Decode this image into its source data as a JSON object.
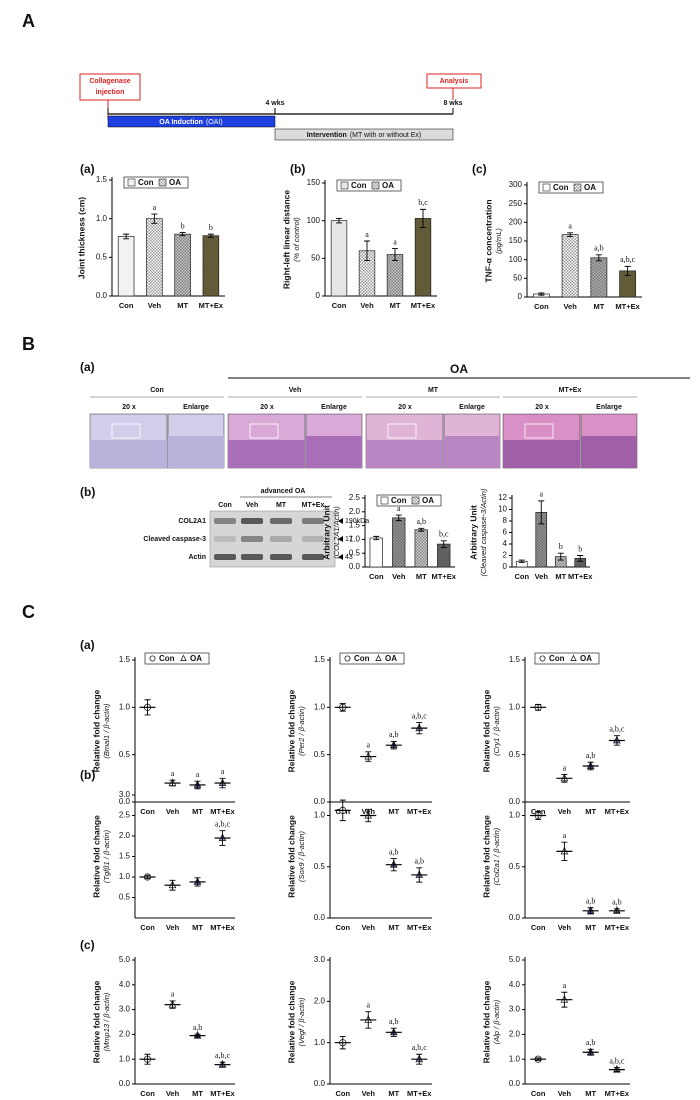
{
  "panel_labels": {
    "A": "A",
    "B": "B",
    "C": "C",
    "A_sub": [
      "(a)",
      "(b)",
      "(c)"
    ],
    "B_sub": [
      "(a)",
      "(b)"
    ],
    "C_sub": [
      "(a)",
      "(b)",
      "(c)"
    ]
  },
  "timeline": {
    "start_label": [
      "Collagenase",
      "injection"
    ],
    "end_label": "Analysis",
    "mid_tick": "4 wks",
    "end_tick": "8 wks",
    "phase1": "OA Induction",
    "phase1_abbr": "(OAI)",
    "phase2": "Intervention",
    "phase2_note": "(MT with or without Ex)"
  },
  "histology": {
    "group": "OA",
    "columns": [
      {
        "name": "Con",
        "sub": [
          "20 x",
          "Enlarge"
        ]
      },
      {
        "name": "Veh",
        "sub": [
          "20 x",
          "Enlarge"
        ]
      },
      {
        "name": "MT",
        "sub": [
          "20 x",
          "Enlarge"
        ]
      },
      {
        "name": "MT+Ex",
        "sub": [
          "20 x",
          "Enlarge"
        ]
      }
    ]
  },
  "western": {
    "group": "advanced OA",
    "lanes": [
      "Con",
      "Veh",
      "MT",
      "MT+Ex"
    ],
    "rows": [
      {
        "name": "COL2A1",
        "size": "190kDa"
      },
      {
        "name": "Cleaved caspase-3",
        "size": "17"
      },
      {
        "name": "Actin",
        "size": "43"
      }
    ]
  },
  "chart_data": [
    {
      "type": "bar",
      "ylabel": "Joint thickness (cm)",
      "categories": [
        "Con",
        "Veh",
        "MT",
        "MT+Ex"
      ],
      "values": [
        0.77,
        1.0,
        0.8,
        0.78
      ],
      "errors": [
        0.03,
        0.06,
        0.02,
        0.02
      ],
      "annotations": [
        null,
        "a",
        "b",
        "b"
      ],
      "colors": [
        "#f2f2f2",
        "#ffffff",
        "#c8c8c8",
        "#6e6433"
      ],
      "hatched": [
        false,
        true,
        true,
        true
      ],
      "legend": [
        "Con",
        "OA"
      ],
      "ylim": [
        0,
        1.5
      ],
      "yticks": [
        {
          "value": 0,
          "label": "0.0"
        },
        0.5,
        {
          "value": 1,
          "label": "1.0"
        },
        1.5
      ]
    },
    {
      "type": "bar",
      "ylabel": "Right-left linear distance",
      "ylabel_sub": "(% of control)",
      "categories": [
        "Con",
        "Veh",
        "MT",
        "MT+Ex"
      ],
      "values": [
        100,
        60,
        55,
        103
      ],
      "errors": [
        3,
        13,
        8,
        12
      ],
      "annotations": [
        null,
        "a",
        "a",
        "b,c"
      ],
      "colors": [
        "#e6e6e6",
        "#ffffff",
        "#c8c8c8",
        "#6e6433"
      ],
      "hatched": [
        false,
        true,
        true,
        true
      ],
      "legend": [
        "Con",
        "OA"
      ],
      "ylim": [
        0,
        150
      ],
      "yticks": [
        0,
        50,
        100,
        150
      ]
    },
    {
      "type": "bar",
      "ylabel": "TNF-α concentration",
      "ylabel_sub": "(pg/mL)",
      "categories": [
        "Con",
        "Veh",
        "MT",
        "MT+Ex"
      ],
      "values": [
        8,
        167,
        105,
        70
      ],
      "errors": [
        3,
        5,
        8,
        12
      ],
      "annotations": [
        null,
        "a",
        "a,b",
        "a,b,c"
      ],
      "colors": [
        "#ffffff",
        "#ffffff",
        "#b4b4b4",
        "#6e6433"
      ],
      "hatched": [
        false,
        true,
        true,
        true
      ],
      "legend": [
        "Con",
        "OA"
      ],
      "ylim": [
        0,
        300
      ],
      "yticks": [
        0,
        50,
        100,
        150,
        200,
        250,
        300
      ]
    },
    {
      "type": "bar",
      "ylabel": "Arbitrary Unit",
      "ylabel_sub": "(COL2A1/Actin)",
      "categories": [
        "Con",
        "Veh",
        "MT",
        "MT+Ex"
      ],
      "values": [
        1.05,
        1.78,
        1.35,
        0.83
      ],
      "errors": [
        0.06,
        0.1,
        0.05,
        0.12
      ],
      "annotations": [
        null,
        "a",
        "a,b",
        "b,c"
      ],
      "colors": [
        "#ffffff",
        "#9a9a9a",
        "#d0d0d0",
        "#606060"
      ],
      "hatched": [
        false,
        true,
        true,
        false
      ],
      "legend": [
        "Con",
        "OA"
      ],
      "ylim": [
        0,
        2.5
      ],
      "yticks": [
        {
          "value": 0,
          "label": "0.0"
        },
        0.5,
        {
          "value": 1,
          "label": "1.0"
        },
        1.5,
        {
          "value": 2,
          "label": "2.0"
        },
        2.5
      ]
    },
    {
      "type": "bar",
      "ylabel": "Arbitrary Unit",
      "ylabel_sub": "(Cleaved caspase-3/Actin)",
      "categories": [
        "Con",
        "Veh",
        "MT",
        "MT+Ex"
      ],
      "values": [
        1,
        9.5,
        1.8,
        1.5
      ],
      "errors": [
        0.2,
        2,
        0.6,
        0.5
      ],
      "annotations": [
        null,
        "a",
        "b",
        "b"
      ],
      "colors": [
        "#ffffff",
        "#9a9a9a",
        "#d0d0d0",
        "#606060"
      ],
      "hatched": [
        false,
        true,
        true,
        false
      ],
      "ylim": [
        0,
        12
      ],
      "yticks": [
        0,
        2,
        4,
        6,
        8,
        10,
        12
      ]
    },
    {
      "type": "dot",
      "ylabel": "Relative fold change",
      "ylabel_sub": "(Bmal1 / β-actin)",
      "categories": [
        "Con",
        "Veh",
        "MT",
        "MT+Ex"
      ],
      "values": [
        1.0,
        0.2,
        0.18,
        0.2
      ],
      "errors": [
        0.08,
        0.03,
        0.04,
        0.05
      ],
      "annotations": [
        null,
        "a",
        "a",
        "a"
      ],
      "markers": [
        "circle",
        "triangle",
        "triangle",
        "triangle"
      ],
      "colors": [
        "#ffffff",
        "#ffffff",
        "#4b4f9e",
        "#8a8dc8"
      ],
      "legend": [
        "Con",
        "OA"
      ],
      "ylim": [
        0,
        1.5
      ],
      "yticks": [
        {
          "value": 0,
          "label": "0.0"
        },
        0.5,
        {
          "value": 1,
          "label": "1.0"
        },
        1.5
      ]
    },
    {
      "type": "dot",
      "ylabel": "Relative fold change",
      "ylabel_sub": "(Per2 / β-actin)",
      "categories": [
        "Con",
        "Veh",
        "MT",
        "MT+Ex"
      ],
      "values": [
        1.0,
        0.48,
        0.6,
        0.78
      ],
      "errors": [
        0.04,
        0.05,
        0.04,
        0.06
      ],
      "annotations": [
        null,
        "a",
        "a,b",
        "a,b,c"
      ],
      "markers": [
        "circle",
        "triangle",
        "triangle",
        "triangle"
      ],
      "colors": [
        "#ffffff",
        "#ffffff",
        "#4b4f9e",
        "#8a8dc8"
      ],
      "legend": [
        "Con",
        "OA"
      ],
      "ylim": [
        0,
        1.5
      ],
      "yticks": [
        {
          "value": 0,
          "label": "0.0"
        },
        0.5,
        {
          "value": 1,
          "label": "1.0"
        },
        1.5
      ]
    },
    {
      "type": "dot",
      "ylabel": "Relative fold change",
      "ylabel_sub": "(Cry1 / β-actin)",
      "categories": [
        "Con",
        "Veh",
        "MT",
        "MT+Ex"
      ],
      "values": [
        1.0,
        0.25,
        0.38,
        0.65
      ],
      "errors": [
        0.03,
        0.04,
        0.04,
        0.05
      ],
      "annotations": [
        null,
        "a",
        "a,b",
        "a,b,c"
      ],
      "markers": [
        "circle",
        "triangle",
        "triangle",
        "triangle"
      ],
      "colors": [
        "#ffffff",
        "#ffffff",
        "#4b4f9e",
        "#8a8dc8"
      ],
      "legend": [
        "Con",
        "OA"
      ],
      "ylim": [
        0,
        1.5
      ],
      "yticks": [
        {
          "value": 0,
          "label": "0.0"
        },
        0.5,
        {
          "value": 1,
          "label": "1.0"
        },
        1.5
      ]
    },
    {
      "type": "dot",
      "ylabel": "Relative fold change",
      "ylabel_sub": "(Tgfβ1 / β-actin)",
      "categories": [
        "Con",
        "Veh",
        "MT",
        "MT+Ex"
      ],
      "values": [
        1.0,
        0.8,
        0.88,
        1.95
      ],
      "errors": [
        0.04,
        0.12,
        0.1,
        0.18
      ],
      "annotations": [
        null,
        null,
        null,
        "a,b,c"
      ],
      "markers": [
        "circle",
        "triangle",
        "triangle",
        "triangle"
      ],
      "colors": [
        "#ffffff",
        "#ffffff",
        "#4b4f9e",
        "#8a8dc8"
      ],
      "ylim": [
        0,
        3.0
      ],
      "yticks": [
        0.5,
        {
          "value": 1,
          "label": "1.0"
        },
        1.5,
        {
          "value": 2,
          "label": "2.0"
        },
        2.5,
        {
          "value": 3,
          "label": "3.0"
        }
      ]
    },
    {
      "type": "dot",
      "ylabel": "Relative fold change",
      "ylabel_sub": "(Sox9 / β-actin)",
      "categories": [
        "Con",
        "Veh",
        "MT",
        "MT+Ex"
      ],
      "values": [
        1.05,
        1.0,
        0.52,
        0.42
      ],
      "errors": [
        0.1,
        0.06,
        0.06,
        0.07
      ],
      "annotations": [
        null,
        null,
        "a,b",
        "a,b"
      ],
      "markers": [
        "circle",
        "triangle",
        "triangle",
        "triangle"
      ],
      "colors": [
        "#ffffff",
        "#ffffff",
        "#4b4f9e",
        "#8a8dc8"
      ],
      "ylim": [
        0,
        1.2
      ],
      "yticks": [
        {
          "value": 0,
          "label": "0.0"
        },
        0.5,
        {
          "value": 1,
          "label": "1.0"
        }
      ]
    },
    {
      "type": "dot",
      "ylabel": "Relative fold change",
      "ylabel_sub": "(Col2a1 / β-actin)",
      "categories": [
        "Con",
        "Veh",
        "MT",
        "MT+Ex"
      ],
      "values": [
        1.0,
        0.65,
        0.07,
        0.07
      ],
      "errors": [
        0.04,
        0.09,
        0.03,
        0.02
      ],
      "annotations": [
        null,
        "a",
        "a,b",
        "a,b"
      ],
      "markers": [
        "circle",
        "triangle",
        "triangle",
        "triangle"
      ],
      "colors": [
        "#ffffff",
        "#ffffff",
        "#4b4f9e",
        "#8a8dc8"
      ],
      "ylim": [
        0,
        1.2
      ],
      "yticks": [
        {
          "value": 0,
          "label": "0.0"
        },
        0.5,
        {
          "value": 1,
          "label": "1.0"
        }
      ]
    },
    {
      "type": "dot",
      "ylabel": "Relative fold change",
      "ylabel_sub": "(Mmp13 / β-actin)",
      "categories": [
        "Con",
        "Veh",
        "MT",
        "MT+Ex"
      ],
      "values": [
        1.0,
        3.2,
        1.95,
        0.78
      ],
      "errors": [
        0.2,
        0.15,
        0.06,
        0.1
      ],
      "annotations": [
        null,
        "a",
        "a,b",
        "a,b,c"
      ],
      "markers": [
        "circle",
        "triangle",
        "triangle",
        "triangle"
      ],
      "colors": [
        "#ffffff",
        "#ffffff",
        "#4b4f9e",
        "#8a8dc8"
      ],
      "ylim": [
        0,
        5
      ],
      "yticks": [
        {
          "value": 0,
          "label": "0.0"
        },
        {
          "value": 1,
          "label": "1.0"
        },
        {
          "value": 2,
          "label": "2.0"
        },
        {
          "value": 3,
          "label": "3.0"
        },
        {
          "value": 4,
          "label": "4.0"
        },
        {
          "value": 5,
          "label": "5.0"
        }
      ]
    },
    {
      "type": "dot",
      "ylabel": "Relative fold change",
      "ylabel_sub": "(Vegf / β-actin)",
      "categories": [
        "Con",
        "Veh",
        "MT",
        "MT+Ex"
      ],
      "values": [
        1.0,
        1.55,
        1.25,
        0.6
      ],
      "errors": [
        0.15,
        0.2,
        0.1,
        0.12
      ],
      "annotations": [
        null,
        "a",
        "a,b",
        "a,b,c"
      ],
      "markers": [
        "circle",
        "triangle",
        "triangle",
        "triangle"
      ],
      "colors": [
        "#ffffff",
        "#ffffff",
        "#4b4f9e",
        "#8a8dc8"
      ],
      "ylim": [
        0,
        3.0
      ],
      "yticks": [
        {
          "value": 0,
          "label": "0.0"
        },
        {
          "value": 1,
          "label": "1.0"
        },
        {
          "value": 2,
          "label": "2.0"
        },
        {
          "value": 3,
          "label": "3.0"
        }
      ]
    },
    {
      "type": "dot",
      "ylabel": "Relative fold change",
      "ylabel_sub": "(Alp / β-actin)",
      "categories": [
        "Con",
        "Veh",
        "MT",
        "MT+Ex"
      ],
      "values": [
        1.0,
        3.4,
        1.28,
        0.58
      ],
      "errors": [
        0.05,
        0.3,
        0.12,
        0.08
      ],
      "annotations": [
        null,
        "a",
        "a,b",
        "a,b,c"
      ],
      "markers": [
        "circle",
        "triangle",
        "triangle",
        "triangle"
      ],
      "colors": [
        "#ffffff",
        "#ffffff",
        "#4b4f9e",
        "#8a8dc8"
      ],
      "ylim": [
        0,
        5
      ],
      "yticks": [
        {
          "value": 0,
          "label": "0.0"
        },
        {
          "value": 1,
          "label": "1.0"
        },
        {
          "value": 2,
          "label": "2.0"
        },
        {
          "value": 3,
          "label": "3.0"
        },
        {
          "value": 4,
          "label": "4.0"
        },
        {
          "value": 5,
          "label": "5.0"
        }
      ]
    }
  ]
}
